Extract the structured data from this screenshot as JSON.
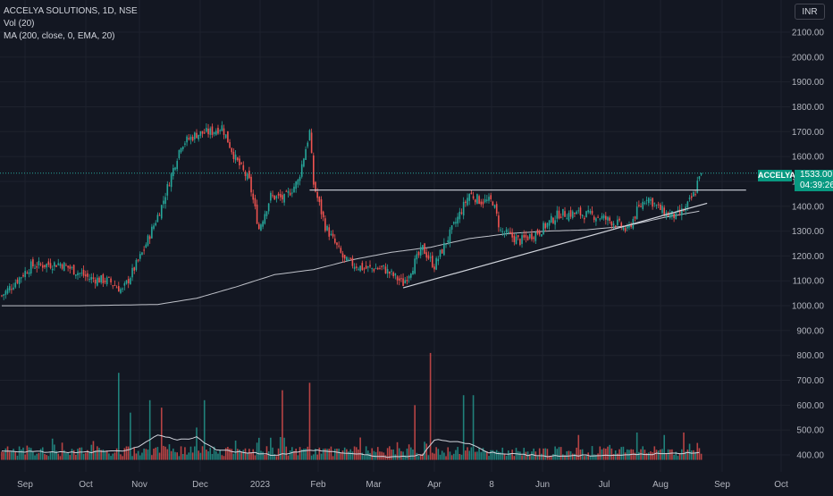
{
  "legend": {
    "symbol_line": "ACCELYA SOLUTIONS, 1D, NSE",
    "vol_line": "Vol (20)",
    "ma_line": "MA (200, close, 0, EMA, 20)"
  },
  "currency": "INR",
  "last_price": {
    "symbol": "ACCELYA",
    "price": "1533.00",
    "countdown": "04:39:26"
  },
  "colors": {
    "background": "#131722",
    "up": "#26a69a",
    "down": "#ef5350",
    "ma": "#d1d4dc",
    "trendline": "#d1d4dc",
    "axis_text": "#b2b5be"
  },
  "chart_data": {
    "type": "candlestick",
    "y_axis_ticks": [
      "2100.00",
      "2000.00",
      "1900.00",
      "1800.00",
      "1700.00",
      "1600.00",
      "1500.00",
      "1400.00",
      "1300.00",
      "1200.00",
      "1100.00",
      "1000.00",
      "900.00",
      "800.00",
      "700.00",
      "600.00",
      "500.00",
      "400.00"
    ],
    "ylim": [
      380,
      2150
    ],
    "x_axis_ticks": [
      "Sep",
      "Oct",
      "Nov",
      "Dec",
      "2023",
      "Feb",
      "Mar",
      "Apr",
      "8",
      "Jun",
      "Jul",
      "Aug",
      "Sep",
      "Oct"
    ],
    "price_anchors": [
      [
        0,
        1040
      ],
      [
        15,
        1160
      ],
      [
        30,
        1170
      ],
      [
        45,
        1110
      ],
      [
        55,
        1100
      ],
      [
        62,
        1060
      ],
      [
        72,
        1210
      ],
      [
        82,
        1400
      ],
      [
        92,
        1650
      ],
      [
        100,
        1690
      ],
      [
        108,
        1700
      ],
      [
        113,
        1720
      ],
      [
        120,
        1590
      ],
      [
        127,
        1500
      ],
      [
        132,
        1310
      ],
      [
        138,
        1440
      ],
      [
        145,
        1430
      ],
      [
        152,
        1500
      ],
      [
        158,
        1700
      ],
      [
        160,
        1490
      ],
      [
        166,
        1320
      ],
      [
        176,
        1180
      ],
      [
        186,
        1150
      ],
      [
        196,
        1150
      ],
      [
        206,
        1090
      ],
      [
        216,
        1230
      ],
      [
        222,
        1160
      ],
      [
        232,
        1320
      ],
      [
        240,
        1450
      ],
      [
        246,
        1420
      ],
      [
        252,
        1420
      ],
      [
        256,
        1300
      ],
      [
        266,
        1260
      ],
      [
        276,
        1300
      ],
      [
        286,
        1370
      ],
      [
        296,
        1370
      ],
      [
        306,
        1360
      ],
      [
        316,
        1330
      ],
      [
        321,
        1300
      ],
      [
        326,
        1380
      ],
      [
        331,
        1440
      ],
      [
        336,
        1400
      ],
      [
        341,
        1370
      ],
      [
        346,
        1360
      ],
      [
        351,
        1390
      ],
      [
        356,
        1460
      ],
      [
        358,
        1533
      ]
    ],
    "ma_anchors": [
      [
        0,
        1000
      ],
      [
        40,
        1000
      ],
      [
        80,
        1005
      ],
      [
        100,
        1030
      ],
      [
        120,
        1075
      ],
      [
        140,
        1125
      ],
      [
        160,
        1145
      ],
      [
        180,
        1185
      ],
      [
        200,
        1215
      ],
      [
        220,
        1235
      ],
      [
        240,
        1270
      ],
      [
        260,
        1290
      ],
      [
        280,
        1300
      ],
      [
        300,
        1305
      ],
      [
        320,
        1320
      ],
      [
        340,
        1355
      ],
      [
        358,
        1380
      ]
    ],
    "volume_spikes": [
      [
        60,
        730
      ],
      [
        66,
        570
      ],
      [
        76,
        620
      ],
      [
        82,
        590
      ],
      [
        100,
        510
      ],
      [
        104,
        620
      ],
      [
        144,
        660
      ],
      [
        158,
        690
      ],
      [
        184,
        470
      ],
      [
        212,
        600
      ],
      [
        220,
        810
      ],
      [
        237,
        640
      ],
      [
        242,
        640
      ],
      [
        296,
        480
      ],
      [
        312,
        440
      ],
      [
        326,
        490
      ],
      [
        340,
        480
      ],
      [
        350,
        490
      ]
    ],
    "volume_ma_anchors": [
      [
        0,
        415
      ],
      [
        40,
        410
      ],
      [
        60,
        415
      ],
      [
        70,
        430
      ],
      [
        80,
        480
      ],
      [
        90,
        460
      ],
      [
        100,
        470
      ],
      [
        110,
        420
      ],
      [
        140,
        400
      ],
      [
        160,
        420
      ],
      [
        200,
        390
      ],
      [
        216,
        400
      ],
      [
        222,
        460
      ],
      [
        232,
        455
      ],
      [
        240,
        445
      ],
      [
        250,
        410
      ],
      [
        280,
        395
      ],
      [
        320,
        400
      ],
      [
        358,
        410
      ]
    ],
    "resistance_level": 1465,
    "support_trendline": [
      [
        206,
        1072
      ],
      [
        362,
        1412
      ]
    ],
    "last_close": 1533
  }
}
